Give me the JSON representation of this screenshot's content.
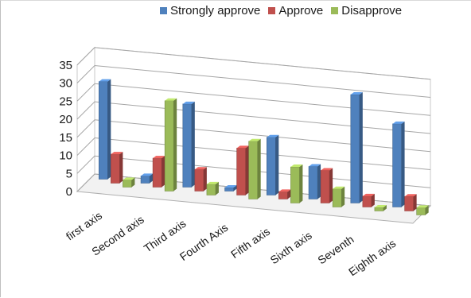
{
  "chart_data": {
    "type": "bar",
    "style": "3d-clustered-column",
    "categories": [
      "first axis",
      "Second axis",
      "Third axis",
      "Fourth Axis",
      "Fifth axis",
      "Sixth axis",
      "Seventh",
      "Eighth axis"
    ],
    "series": [
      {
        "name": "Strongly approve",
        "color": "#4f81bd",
        "values": [
          27,
          2,
          23,
          1,
          16,
          9,
          30,
          23
        ]
      },
      {
        "name": "Approve",
        "color": "#c0504d",
        "values": [
          8,
          8,
          6,
          13,
          2,
          9,
          3,
          4
        ]
      },
      {
        "name": "Disapprove",
        "color": "#9bbb59",
        "values": [
          2,
          25,
          3,
          16,
          10,
          5,
          1,
          2
        ]
      }
    ],
    "ylim": [
      0,
      35
    ],
    "yticks": [
      0,
      5,
      10,
      15,
      20,
      25,
      30,
      35
    ],
    "grid": true,
    "legend": "top"
  }
}
